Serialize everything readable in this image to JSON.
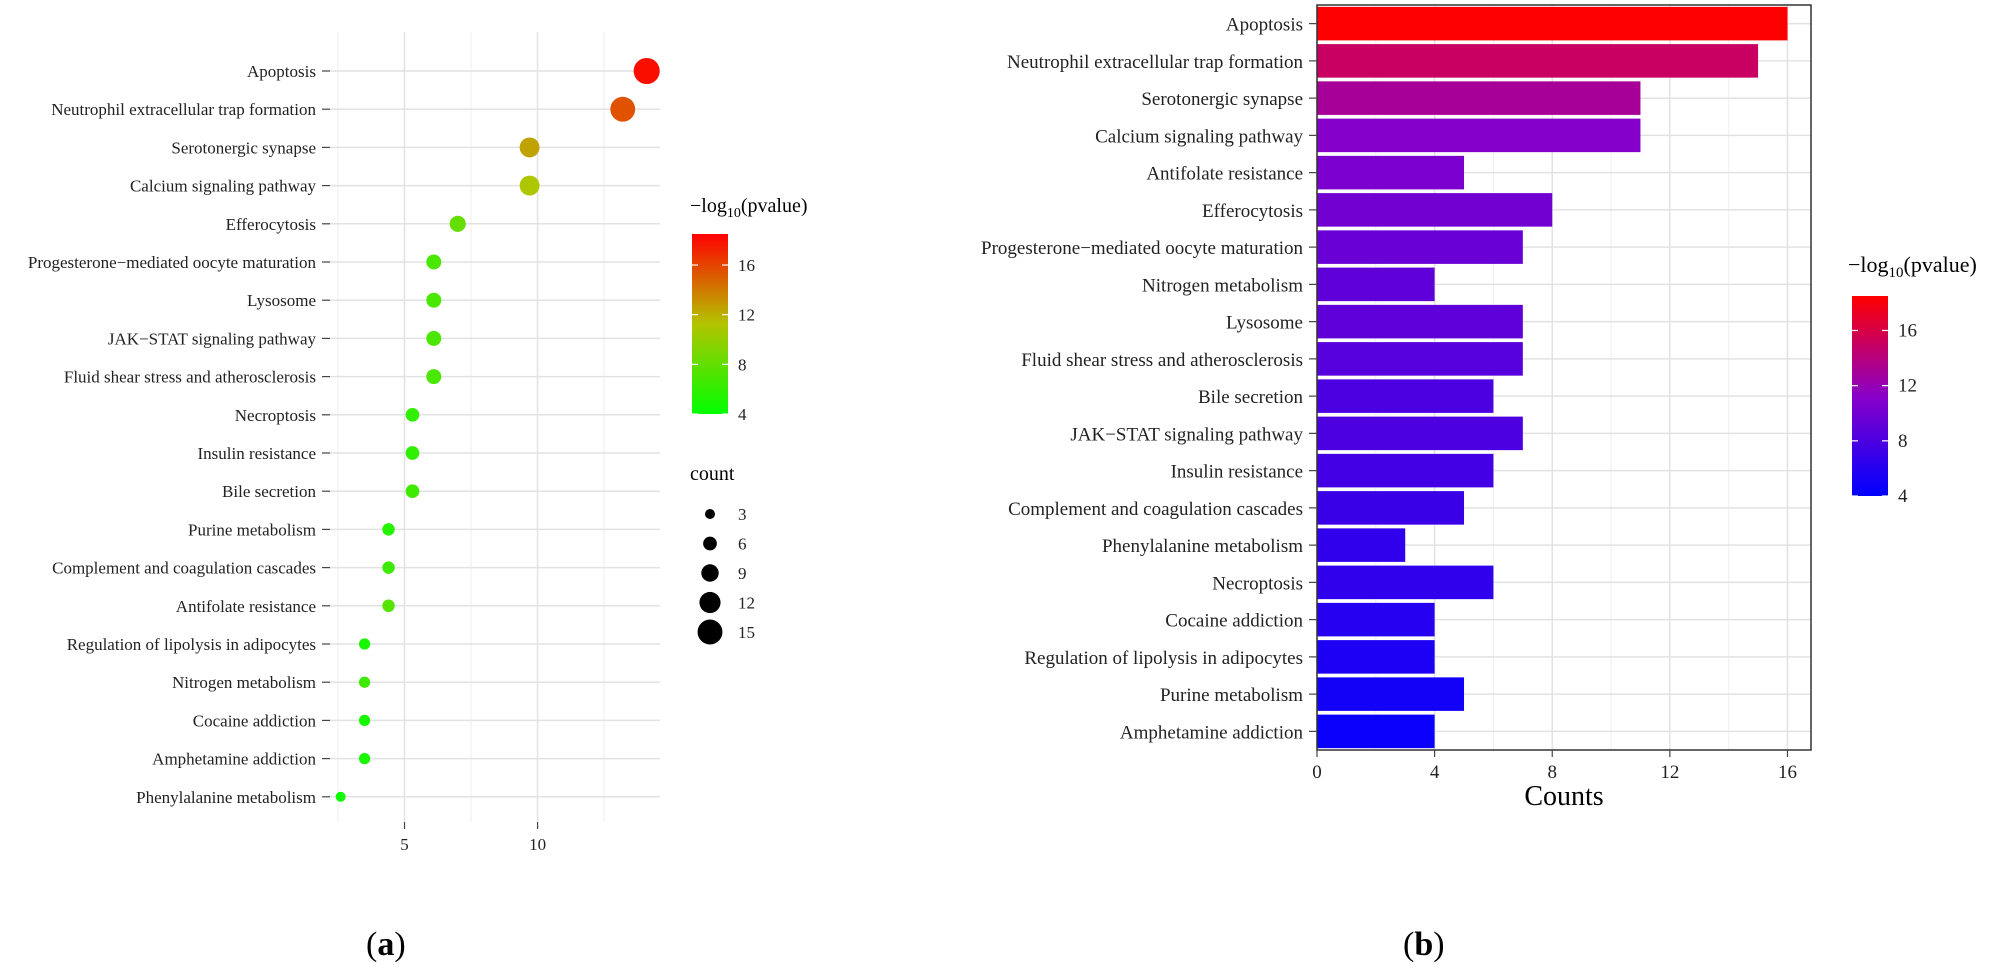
{
  "panel_labels": {
    "a": "a",
    "b": "b"
  },
  "chart_data": [
    {
      "id": "a",
      "type": "scatter",
      "title": "",
      "xlabel": "",
      "ylabel": "",
      "xlim": [
        2.2,
        14.6
      ],
      "xticks": [
        5,
        10
      ],
      "grid": true,
      "categories": [
        "Apoptosis",
        "Neutrophil extracellular trap formation",
        "Serotonergic synapse",
        "Calcium signaling pathway",
        "Efferocytosis",
        "Progesterone−mediated oocyte maturation",
        "Lysosome",
        "JAK−STAT signaling pathway",
        "Fluid shear stress and atherosclerosis",
        "Necroptosis",
        "Insulin resistance",
        "Bile secretion",
        "Purine metabolism",
        "Complement and coagulation cascades",
        "Antifolate resistance",
        "Regulation of lipolysis in adipocytes",
        "Nitrogen metabolism",
        "Cocaine addiction",
        "Amphetamine addiction",
        "Phenylalanine metabolism"
      ],
      "x": [
        14.1,
        13.2,
        9.7,
        9.7,
        7.0,
        6.1,
        6.1,
        6.1,
        6.1,
        5.3,
        5.3,
        5.3,
        4.4,
        4.4,
        4.4,
        3.5,
        3.5,
        3.5,
        3.5,
        2.6
      ],
      "count": [
        16,
        15,
        11,
        11,
        8,
        7,
        7,
        7,
        7,
        6,
        6,
        6,
        5,
        5,
        5,
        4,
        4,
        4,
        4,
        3
      ],
      "neglog10p": [
        18,
        15.5,
        12.5,
        11,
        8,
        7,
        7,
        7,
        7,
        6,
        6,
        6.5,
        5.5,
        6.5,
        7.5,
        5,
        6.5,
        5,
        5,
        4.5
      ],
      "color_legend": {
        "title_prefix": "−log",
        "title_sub": "10",
        "title_suffix": "(pvalue)",
        "ticks": [
          "16",
          "12",
          "8",
          "4"
        ],
        "range": [
          4,
          18.5
        ],
        "colors": [
          "#00ff00",
          "#ff0000"
        ]
      },
      "size_legend": {
        "title": "count",
        "values": [
          3,
          6,
          9,
          12,
          15
        ],
        "labels": [
          "3",
          "6",
          "9",
          "12",
          "15"
        ]
      }
    },
    {
      "id": "b",
      "type": "bar",
      "orientation": "horizontal",
      "title": "",
      "xlabel": "Counts",
      "ylabel": "",
      "xlim": [
        0,
        16.8
      ],
      "xticks": [
        0,
        4,
        8,
        12,
        16
      ],
      "grid": true,
      "categories": [
        "Apoptosis",
        "Neutrophil extracellular trap formation",
        "Serotonergic synapse",
        "Calcium signaling pathway",
        "Antifolate resistance",
        "Efferocytosis",
        "Progesterone−mediated oocyte maturation",
        "Nitrogen metabolism",
        "Lysosome",
        "Fluid shear stress and atherosclerosis",
        "Bile secretion",
        "JAK−STAT signaling pathway",
        "Insulin resistance",
        "Complement and coagulation cascades",
        "Phenylalanine metabolism",
        "Necroptosis",
        "Cocaine addiction",
        "Regulation of lipolysis in adipocytes",
        "Purine metabolism",
        "Amphetamine addiction"
      ],
      "values": [
        16,
        15,
        11,
        11,
        5,
        8,
        7,
        4,
        7,
        7,
        6,
        7,
        6,
        5,
        3,
        6,
        4,
        4,
        5,
        4
      ],
      "neglog10p": [
        18.5,
        15,
        13,
        11,
        10.5,
        10,
        9.5,
        9,
        9,
        8.5,
        8,
        8,
        7.5,
        7,
        6.5,
        6.5,
        6,
        5.5,
        5,
        4.5
      ],
      "color_legend": {
        "title_prefix": "−log",
        "title_sub": "10",
        "title_suffix": "(pvalue)",
        "ticks": [
          "16",
          "12",
          "8",
          "4"
        ],
        "range": [
          4,
          18.5
        ],
        "colors": [
          "#0000ff",
          "#ff0000"
        ]
      }
    }
  ]
}
